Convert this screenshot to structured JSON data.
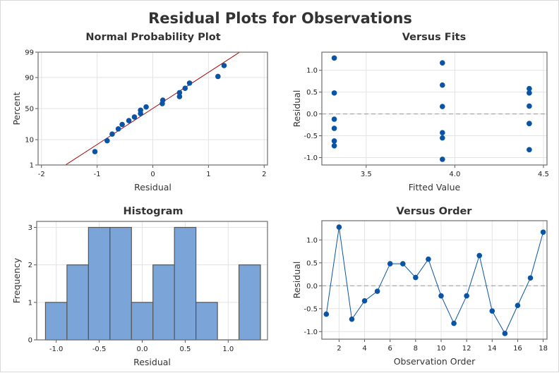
{
  "title": "Residual Plots for Observations",
  "colors": {
    "point": "#0954A5",
    "line": "#0954A5",
    "fit_line": "#A50000",
    "bar": "#7BA5D8",
    "bar_edge": "#555555",
    "grid": "#E3E3E3",
    "reference": "#999999"
  },
  "chart_data": [
    {
      "type": "scatter",
      "title": "Normal Probability Plot",
      "xlabel": "Residual",
      "ylabel": "Percent",
      "xlim": [
        -2.06,
        2.06
      ],
      "ylim": [
        1,
        99
      ],
      "y_scale": "normal-probability",
      "xticks": [
        -2,
        -1,
        0,
        1,
        2
      ],
      "yticks": [
        1,
        10,
        50,
        90,
        99
      ],
      "fit_line": true,
      "grid": true
    },
    {
      "type": "scatter",
      "title": "Versus Fits",
      "xlabel": "Fitted Value",
      "ylabel": "Residual",
      "xlim": [
        3.25,
        4.52
      ],
      "ylim": [
        -1.17,
        1.415
      ],
      "xticks": [
        "3.5",
        "4.0",
        "4.5"
      ],
      "yticks": [
        "-1.0",
        "-0.5",
        "0.0",
        "0.5",
        "1.0"
      ],
      "reference_line": 0,
      "fits": [
        3.32,
        3.32,
        3.32,
        3.32,
        3.32,
        3.32,
        4.42,
        4.42,
        4.42,
        4.42,
        4.42,
        4.42,
        3.93,
        3.93,
        3.93,
        3.93,
        3.93,
        3.93
      ],
      "grid": true
    },
    {
      "type": "bar",
      "title": "Histogram",
      "xlabel": "Residual",
      "ylabel": "Frequency",
      "xlim": [
        -1.227,
        1.457
      ],
      "ylim": [
        0,
        3.16
      ],
      "bin_edges": [
        -1.125,
        -0.875,
        -0.625,
        -0.375,
        -0.125,
        0.125,
        0.375,
        0.625,
        0.875,
        1.125,
        1.375
      ],
      "counts": [
        1,
        2,
        3,
        3,
        1,
        2,
        3,
        1,
        0,
        2
      ],
      "xticks": [
        "-1.0",
        "-0.5",
        "0.0",
        "0.5",
        "1.0"
      ],
      "yticks": [
        "0",
        "1",
        "2",
        "3"
      ],
      "grid": true
    },
    {
      "type": "line",
      "title": "Versus Order",
      "xlabel": "Observation Order",
      "ylabel": "Residual",
      "xlim": [
        0.65,
        18.3
      ],
      "ylim": [
        -1.165,
        1.42
      ],
      "xticks": [
        "2",
        "4",
        "6",
        "8",
        "10",
        "12",
        "14",
        "16",
        "18"
      ],
      "yticks": [
        "-1.0",
        "-0.5",
        "0.0",
        "0.5",
        "1.0"
      ],
      "reference_line": 0,
      "grid": true
    }
  ],
  "residuals": [
    -0.62,
    1.28,
    -0.73,
    -0.33,
    -0.12,
    0.48,
    0.48,
    0.18,
    0.58,
    -0.22,
    -0.82,
    -0.22,
    0.66,
    -0.55,
    -1.04,
    -0.43,
    0.17,
    1.17
  ]
}
